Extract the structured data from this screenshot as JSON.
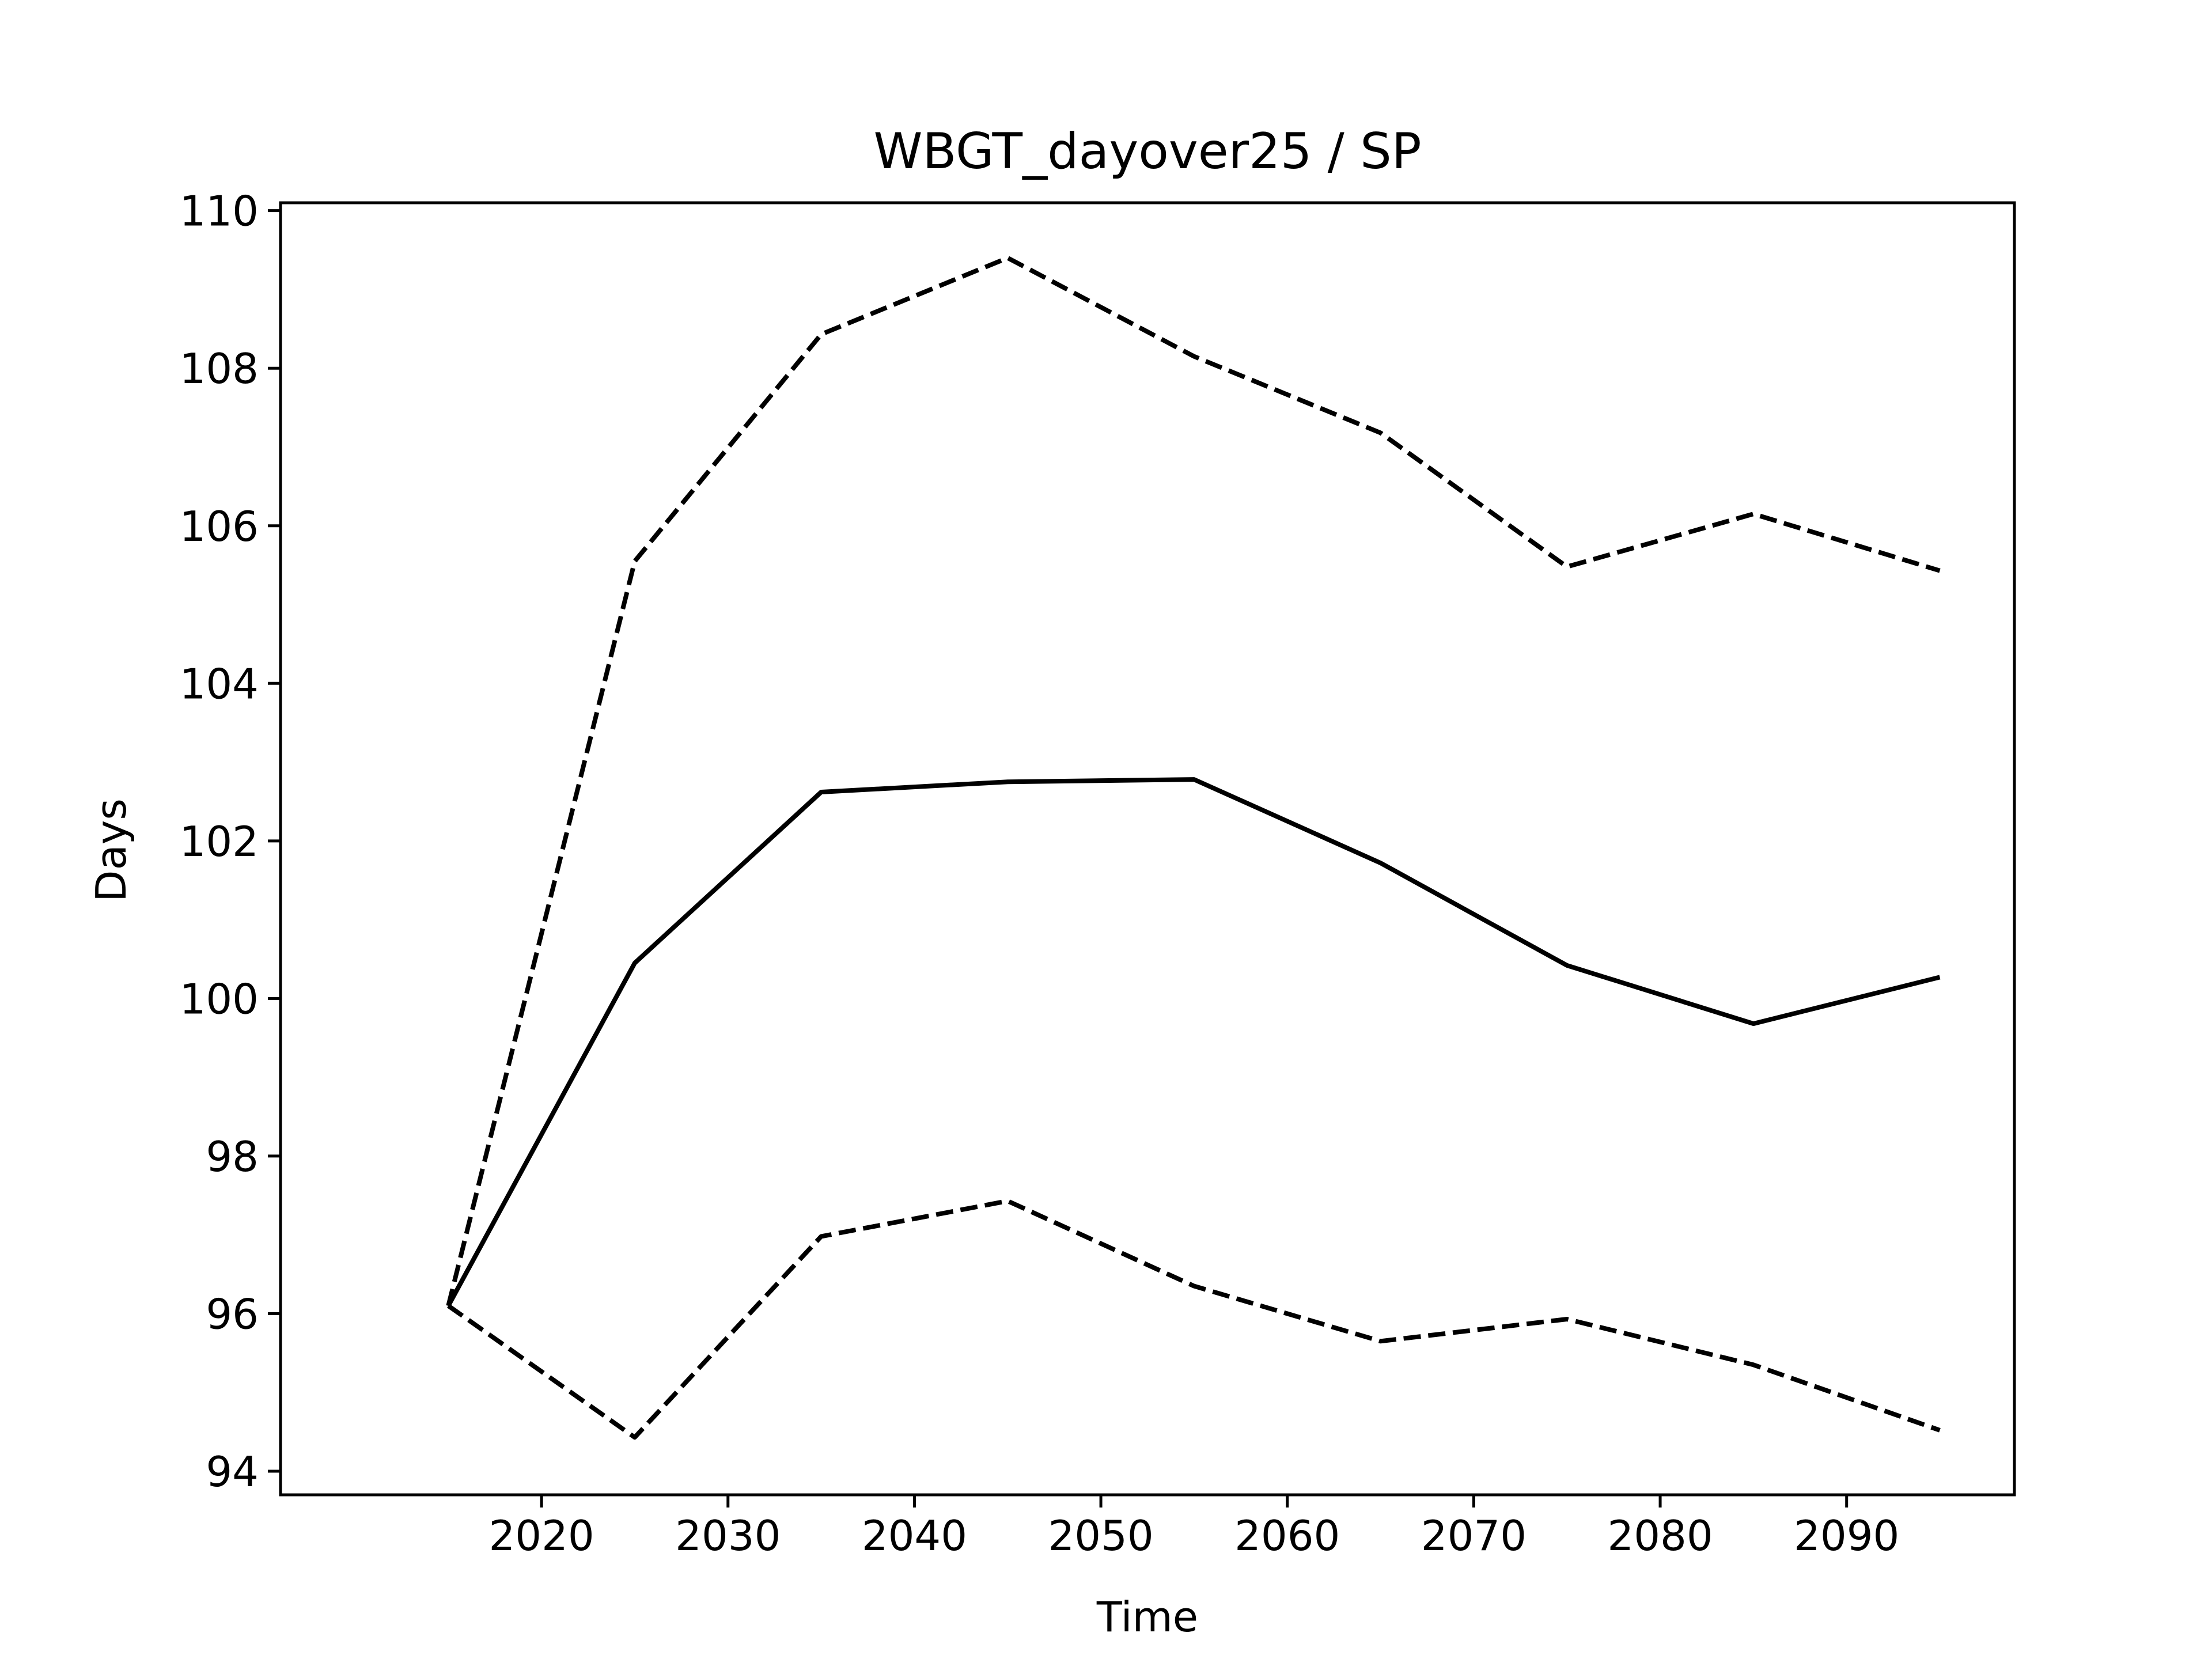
{
  "chart_data": {
    "type": "line",
    "title": "WBGT_dayover25 / SP",
    "xlabel": "Time",
    "ylabel": "Days",
    "x": [
      2015,
      2025,
      2035,
      2045,
      2055,
      2065,
      2075,
      2085,
      2095
    ],
    "xlim": [
      2006,
      2099
    ],
    "ylim": [
      93.7,
      110.1
    ],
    "xticks": [
      2020,
      2030,
      2040,
      2050,
      2060,
      2070,
      2080,
      2090
    ],
    "yticks": [
      94,
      96,
      98,
      100,
      102,
      104,
      106,
      108,
      110
    ],
    "grid": false,
    "legend": "none",
    "series": [
      {
        "style": "solid",
        "color": "#000000",
        "values": [
          96.1,
          100.45,
          102.62,
          102.75,
          102.78,
          101.72,
          100.42,
          99.68,
          100.27
        ]
      },
      {
        "style": "dashed",
        "color": "#000000",
        "values": [
          96.1,
          105.55,
          108.43,
          109.4,
          108.15,
          107.18,
          105.48,
          106.15,
          105.43
        ]
      },
      {
        "style": "dashed",
        "color": "#000000",
        "values": [
          96.1,
          94.43,
          96.98,
          97.43,
          96.35,
          95.65,
          95.93,
          95.35,
          94.52
        ]
      }
    ]
  }
}
